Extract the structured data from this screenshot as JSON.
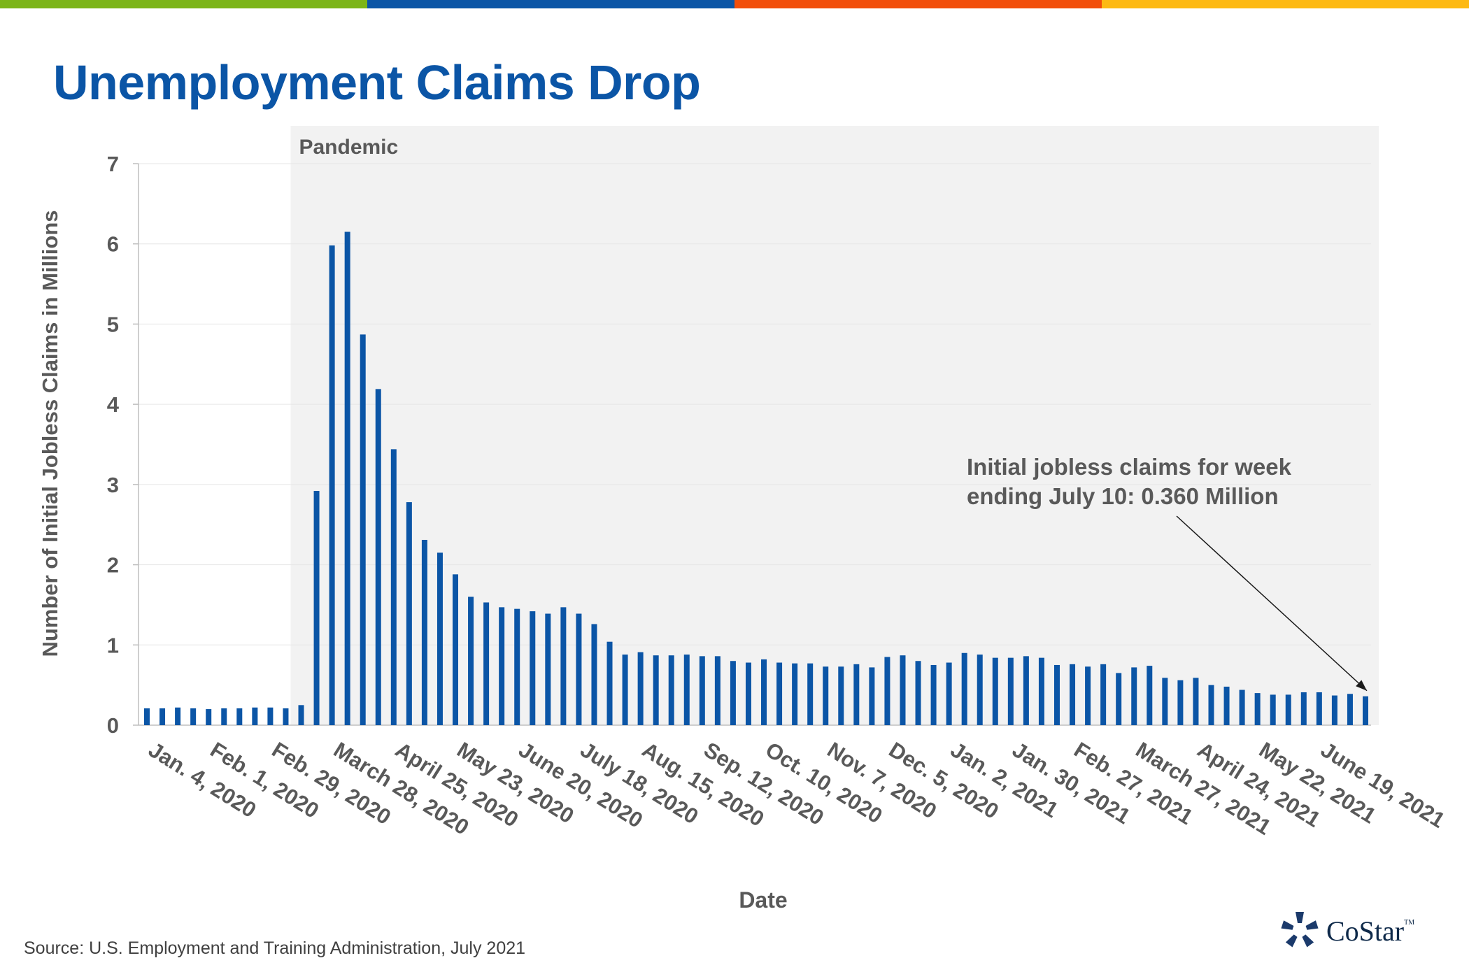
{
  "header": {
    "title": "Unemployment Claims Drop",
    "accent_colors": [
      "#7CB518",
      "#0B55A6",
      "#F24E0A",
      "#FDB913"
    ]
  },
  "footer": {
    "source": "Source: U.S. Employment and Training Administration, July 2021",
    "logo_text": "CoStar",
    "logo_mark": "TM"
  },
  "chart_data": {
    "type": "bar",
    "ylabel": "Number of Initial Jobless Claims in Millions",
    "xlabel": "Date",
    "ylim": [
      0,
      7
    ],
    "yticks": [
      0,
      1,
      2,
      3,
      4,
      5,
      6,
      7
    ],
    "grid": true,
    "bar_color": "#0B55A6",
    "shaded_region": {
      "label": "Pandemic",
      "start_category": "March 14, 2020",
      "end_category": "July 10, 2021",
      "color": "#F2F2F2"
    },
    "annotation": {
      "lines": [
        "Initial jobless claims for week",
        "ending July 10: 0.360 Million"
      ],
      "target_category": "July 10, 2021",
      "target_value": 0.36
    },
    "tick_labels": [
      "Jan. 4, 2020",
      "Feb. 1, 2020",
      "Feb. 29, 2020",
      "March 28, 2020",
      "April 25, 2020",
      "May 23, 2020",
      "June 20, 2020",
      "July 18, 2020",
      "Aug. 15, 2020",
      "Sep. 12, 2020",
      "Oct. 10, 2020",
      "Nov. 7, 2020",
      "Dec. 5, 2020",
      "Jan. 2, 2021",
      "Jan. 30, 2021",
      "Feb. 27, 2021",
      "March 27, 2021",
      "April 24, 2021",
      "May 22, 2021",
      "June 19, 2021"
    ],
    "categories": [
      "Jan. 4, 2020",
      "Jan. 11, 2020",
      "Jan. 18, 2020",
      "Jan. 25, 2020",
      "Feb. 1, 2020",
      "Feb. 8, 2020",
      "Feb. 15, 2020",
      "Feb. 22, 2020",
      "Feb. 29, 2020",
      "March 7, 2020",
      "March 14, 2020",
      "March 21, 2020",
      "March 28, 2020",
      "April 4, 2020",
      "April 11, 2020",
      "April 18, 2020",
      "April 25, 2020",
      "May 2, 2020",
      "May 9, 2020",
      "May 16, 2020",
      "May 23, 2020",
      "May 30, 2020",
      "June 6, 2020",
      "June 13, 2020",
      "June 20, 2020",
      "June 27, 2020",
      "July 4, 2020",
      "July 11, 2020",
      "July 18, 2020",
      "July 25, 2020",
      "Aug. 1, 2020",
      "Aug. 8, 2020",
      "Aug. 15, 2020",
      "Aug. 22, 2020",
      "Aug. 29, 2020",
      "Sep. 5, 2020",
      "Sep. 12, 2020",
      "Sep. 19, 2020",
      "Sep. 26, 2020",
      "Oct. 3, 2020",
      "Oct. 10, 2020",
      "Oct. 17, 2020",
      "Oct. 24, 2020",
      "Oct. 31, 2020",
      "Nov. 7, 2020",
      "Nov. 14, 2020",
      "Nov. 21, 2020",
      "Nov. 28, 2020",
      "Dec. 5, 2020",
      "Dec. 12, 2020",
      "Dec. 19, 2020",
      "Dec. 26, 2020",
      "Jan. 2, 2021",
      "Jan. 9, 2021",
      "Jan. 16, 2021",
      "Jan. 23, 2021",
      "Jan. 30, 2021",
      "Feb. 6, 2021",
      "Feb. 13, 2021",
      "Feb. 20, 2021",
      "Feb. 27, 2021",
      "March 6, 2021",
      "March 13, 2021",
      "March 20, 2021",
      "March 27, 2021",
      "April 3, 2021",
      "April 10, 2021",
      "April 17, 2021",
      "April 24, 2021",
      "May 1, 2021",
      "May 8, 2021",
      "May 15, 2021",
      "May 22, 2021",
      "May 29, 2021",
      "June 5, 2021",
      "June 12, 2021",
      "June 19, 2021",
      "June 26, 2021",
      "July 3, 2021",
      "July 10, 2021"
    ],
    "values": [
      0.21,
      0.21,
      0.22,
      0.21,
      0.2,
      0.21,
      0.21,
      0.22,
      0.22,
      0.21,
      0.25,
      2.92,
      5.98,
      6.15,
      4.87,
      4.19,
      3.44,
      2.78,
      2.31,
      2.15,
      1.88,
      1.6,
      1.53,
      1.47,
      1.45,
      1.42,
      1.39,
      1.47,
      1.39,
      1.26,
      1.04,
      0.88,
      0.91,
      0.87,
      0.87,
      0.88,
      0.86,
      0.86,
      0.8,
      0.78,
      0.82,
      0.78,
      0.77,
      0.77,
      0.73,
      0.73,
      0.76,
      0.72,
      0.85,
      0.87,
      0.8,
      0.75,
      0.78,
      0.9,
      0.88,
      0.84,
      0.84,
      0.86,
      0.84,
      0.75,
      0.76,
      0.73,
      0.76,
      0.65,
      0.72,
      0.74,
      0.59,
      0.56,
      0.59,
      0.5,
      0.48,
      0.44,
      0.4,
      0.38,
      0.38,
      0.41,
      0.41,
      0.37,
      0.39,
      0.36
    ]
  }
}
